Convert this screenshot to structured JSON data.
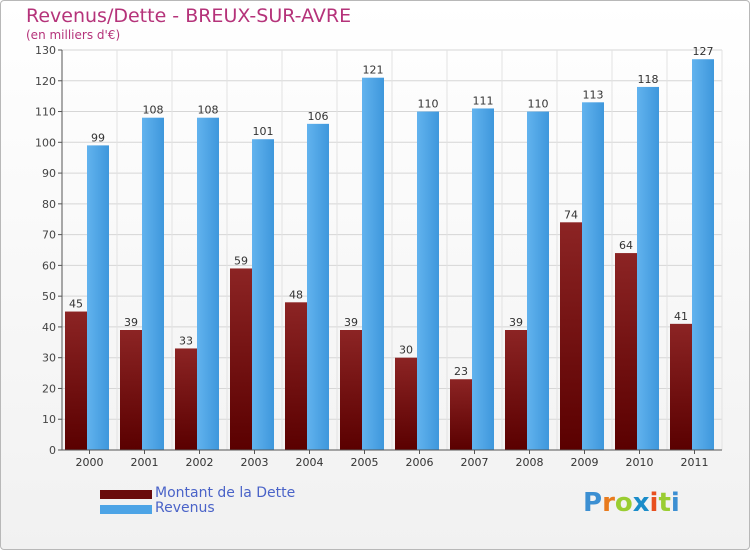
{
  "title": "Revenus/Dette - BREUX-SUR-AVRE",
  "subtitle": "(en milliers d'€)",
  "colors": {
    "title": "#b5337a",
    "dette": "#7a1010",
    "revenus": "#4da4e6",
    "legend_text": "#4a63c8"
  },
  "logo": {
    "text": "Proxiti",
    "letters": [
      "P",
      "r",
      "o",
      "x",
      "i",
      "t",
      "i"
    ],
    "colors": [
      "#3c8fd2",
      "#e87b1e",
      "#9acd32",
      "#1a8cc9",
      "#e84f1e",
      "#9acd32",
      "#3c8fd2"
    ]
  },
  "chart_data": {
    "type": "bar",
    "title": "Revenus/Dette - BREUX-SUR-AVRE",
    "subtitle": "(en milliers d'€)",
    "categories": [
      "2000",
      "2001",
      "2002",
      "2003",
      "2004",
      "2005",
      "2006",
      "2007",
      "2008",
      "2009",
      "2010",
      "2011"
    ],
    "series": [
      {
        "name": "Montant de la Dette",
        "values": [
          45,
          39,
          33,
          59,
          48,
          39,
          30,
          23,
          39,
          74,
          64,
          41
        ],
        "color": "#7a1010"
      },
      {
        "name": "Revenus",
        "values": [
          99,
          108,
          108,
          101,
          106,
          121,
          110,
          111,
          110,
          113,
          118,
          127
        ],
        "color": "#4da4e6"
      }
    ],
    "ylim": [
      0,
      130
    ],
    "yticks": [
      0,
      10,
      20,
      30,
      40,
      50,
      60,
      70,
      80,
      90,
      100,
      110,
      120,
      130
    ],
    "grid": true,
    "legend": "bottom-left"
  }
}
